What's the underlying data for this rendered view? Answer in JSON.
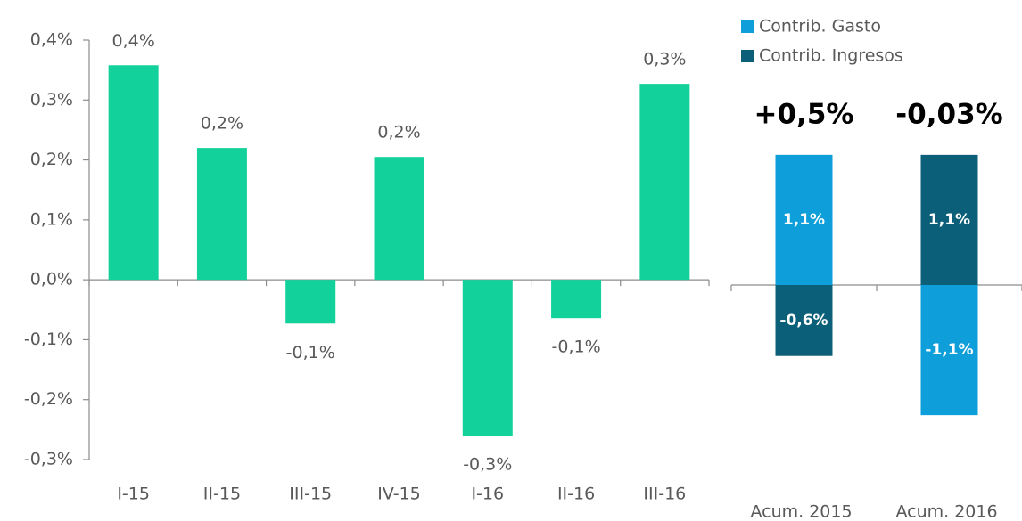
{
  "chart_data": [
    {
      "type": "bar",
      "categories": [
        "I-15",
        "II-15",
        "III-15",
        "IV-15",
        "I-16",
        "II-16",
        "III-16"
      ],
      "values": [
        0.358,
        0.22,
        -0.073,
        0.205,
        -0.26,
        -0.064,
        0.327
      ],
      "value_labels": [
        "0,4%",
        "0,2%",
        "-0,1%",
        "0,2%",
        "-0,3%",
        "-0,1%",
        "0,3%"
      ],
      "color": "#13d19b",
      "ylim": [
        -0.3,
        0.4
      ],
      "yticks": [
        {
          "value": -0.3,
          "label": "-0,3%"
        },
        {
          "value": -0.2,
          "label": "-0,2%"
        },
        {
          "value": -0.1,
          "label": "-0,1%"
        },
        {
          "value": 0,
          "label": "0,0%"
        },
        {
          "value": 0.1,
          "label": "0,1%"
        },
        {
          "value": 0.2,
          "label": "0,2%"
        },
        {
          "value": 0.3,
          "label": "0,3%"
        },
        {
          "value": 0.4,
          "label": "0,4%"
        }
      ],
      "grid": false
    },
    {
      "type": "stacked_bar",
      "categories": [
        "Acum. 2015",
        "Acum. 2016"
      ],
      "series": [
        {
          "name": "Contrib. Gasto",
          "color": "#0e9ed9",
          "values": [
            1.1,
            -1.1
          ],
          "value_labels": [
            "1,1%",
            "-1,1%"
          ]
        },
        {
          "name": "Contrib. Ingresos",
          "color": "#0b5f78",
          "values": [
            -0.6,
            1.1
          ],
          "value_labels": [
            "-0,6%",
            "1,1%"
          ]
        }
      ],
      "annotations": [
        "+0,5%",
        "-0,03%"
      ],
      "ylim": [
        -1.4,
        1.4
      ],
      "legend": "top-right"
    }
  ]
}
